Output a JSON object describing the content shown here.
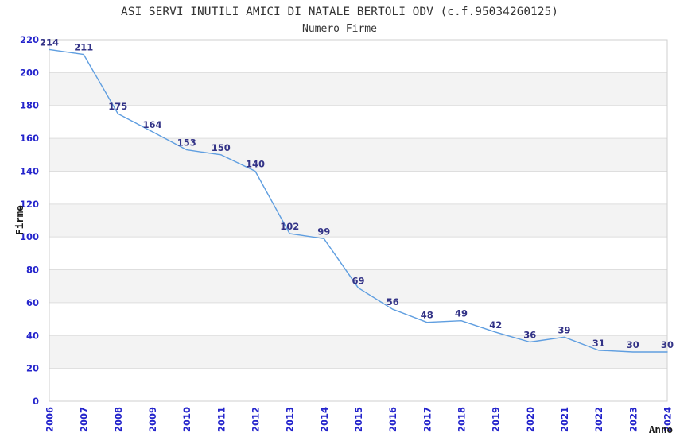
{
  "chart_data": {
    "type": "line",
    "title": "ASI SERVI INUTILI AMICI DI NATALE BERTOLI ODV (c.f.95034260125)",
    "subtitle": "Numero Firme",
    "xlabel": "Anno",
    "ylabel": "Firme",
    "categories": [
      "2006",
      "2007",
      "2008",
      "2009",
      "2010",
      "2011",
      "2012",
      "2013",
      "2014",
      "2015",
      "2016",
      "2017",
      "2018",
      "2019",
      "2020",
      "2021",
      "2022",
      "2023",
      "2024"
    ],
    "series": [
      {
        "name": "Numero Firme",
        "values": [
          214,
          211,
          175,
          164,
          153,
          150,
          140,
          102,
          99,
          69,
          56,
          48,
          49,
          42,
          36,
          39,
          31,
          30,
          30
        ]
      }
    ],
    "ylim": [
      0,
      220
    ],
    "ytick_step": 20,
    "data_labels_shown": true,
    "legend_position": "none",
    "grid": "horizontal-bands",
    "colors": {
      "line": "#5f9ee0",
      "data_label": "#333387",
      "tick_label": "#2424cc",
      "band": "#f3f3f3",
      "gridline": "#dedede",
      "border": "#cfcfcf",
      "title": "#333333",
      "axis_title": "#1a1a1a",
      "background": "#ffffff"
    }
  }
}
